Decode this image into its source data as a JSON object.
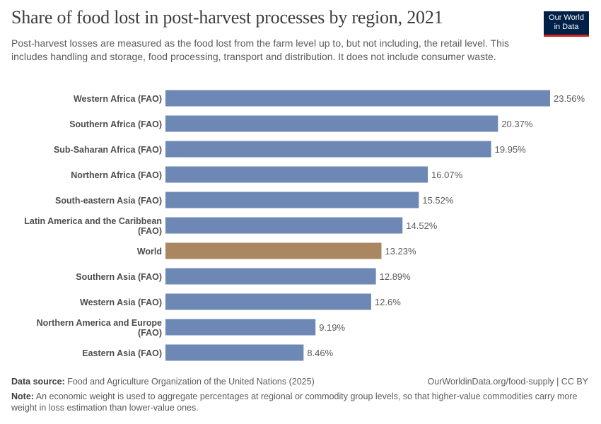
{
  "header": {
    "title": "Share of food lost in post-harvest processes by region, 2021",
    "subtitle": "Post-harvest losses are measured as the food lost from the farm level up to, but not including, the retail level. This includes handling and storage, food processing, transport and distribution. It does not include consumer waste.",
    "logo": "Our World in Data"
  },
  "footer": {
    "source_label": "Data source:",
    "source": "Food and Agriculture Organization of the United Nations (2025)",
    "url": "OurWorldinData.org/food-supply | CC BY",
    "note_label": "Note:",
    "note": "An economic weight is used to aggregate percentages at regional or commodity group levels, so that higher-value commodities carry more weight in loss estimation than lower-value ones."
  },
  "chart_data": {
    "type": "bar",
    "orientation": "horizontal",
    "title": "Share of food lost in post-harvest processes by region, 2021",
    "unit": "%",
    "categories": [
      "Western Africa (FAO)",
      "Southern Africa (FAO)",
      "Sub-Saharan Africa (FAO)",
      "Northern Africa (FAO)",
      "South-eastern Asia (FAO)",
      "Latin America and the Caribbean (FAO)",
      "World",
      "Southern Asia (FAO)",
      "Western Asia (FAO)",
      "Northern America and Europe (FAO)",
      "Eastern Asia (FAO)"
    ],
    "values": [
      23.56,
      20.37,
      19.95,
      16.07,
      15.52,
      14.52,
      13.23,
      12.89,
      12.6,
      9.19,
      8.46
    ],
    "value_labels": [
      "23.56%",
      "20.37%",
      "19.95%",
      "16.07%",
      "15.52%",
      "14.52%",
      "13.23%",
      "12.89%",
      "12.6%",
      "9.19%",
      "8.46%"
    ],
    "xlim": [
      0,
      23.56
    ],
    "grid": false,
    "colors": {
      "default": "#6d88b4",
      "highlight": "#a98760",
      "highlight_category": "World"
    }
  }
}
